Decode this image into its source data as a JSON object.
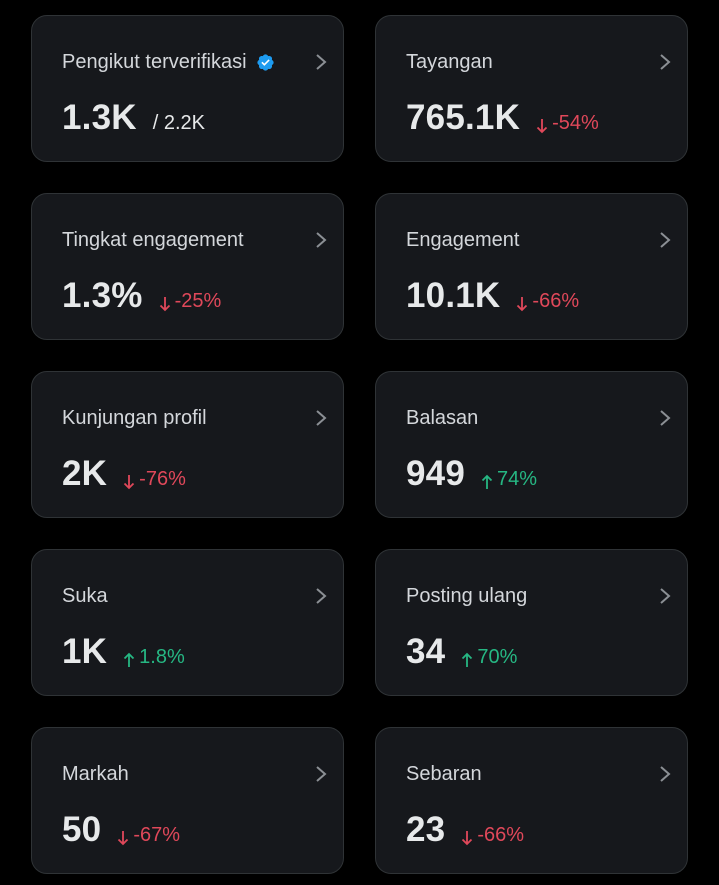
{
  "colors": {
    "background": "#000000",
    "card_background": "#16181c",
    "card_border": "#2f3336",
    "text_primary": "#e7e9ea",
    "negative": "#e0485a",
    "positive": "#26b783",
    "verified": "#1d9bf0"
  },
  "cards": [
    {
      "label": "Pengikut terverifikasi",
      "value": "1.3K",
      "total": "/ 2.2K",
      "verified_icon": "verified-badge-icon"
    },
    {
      "label": "Tayangan",
      "value": "765.1K",
      "change": "-54%",
      "direction": "down"
    },
    {
      "label": "Tingkat engagement",
      "value": "1.3%",
      "change": "-25%",
      "direction": "down"
    },
    {
      "label": "Engagement",
      "value": "10.1K",
      "change": "-66%",
      "direction": "down"
    },
    {
      "label": "Kunjungan profil",
      "value": "2K",
      "change": "-76%",
      "direction": "down"
    },
    {
      "label": "Balasan",
      "value": "949",
      "change": "74%",
      "direction": "up"
    },
    {
      "label": "Suka",
      "value": "1K",
      "change": "1.8%",
      "direction": "up"
    },
    {
      "label": "Posting ulang",
      "value": "34",
      "change": "70%",
      "direction": "up"
    },
    {
      "label": "Markah",
      "value": "50",
      "change": "-67%",
      "direction": "down"
    },
    {
      "label": "Sebaran",
      "value": "23",
      "change": "-66%",
      "direction": "down"
    }
  ]
}
